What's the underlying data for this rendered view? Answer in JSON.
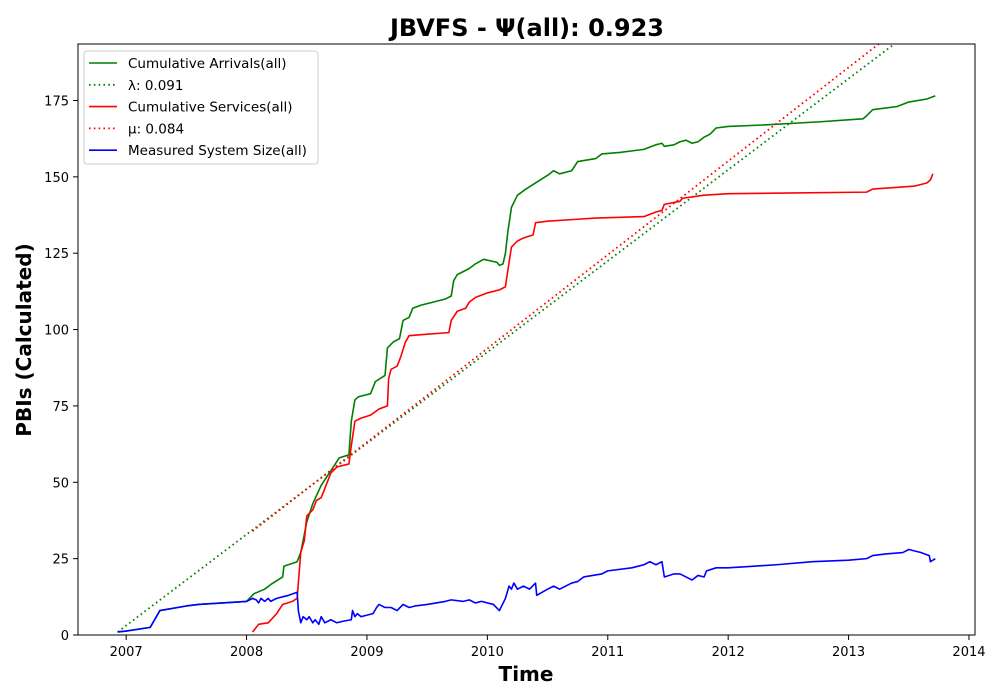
{
  "chart_data": {
    "type": "line",
    "title": "JBVFS -  Ψ(all): 0.923",
    "xlabel": "Time",
    "ylabel": "PBIs (Calculated)",
    "xlim": [
      2006.6,
      2014.05
    ],
    "ylim": [
      0,
      193.5
    ],
    "x_ticks": [
      2007,
      2008,
      2009,
      2010,
      2011,
      2012,
      2013,
      2014
    ],
    "x_tick_labels": [
      "2007",
      "2008",
      "2009",
      "2010",
      "2011",
      "2012",
      "2013",
      "2014"
    ],
    "y_ticks": [
      0,
      25,
      50,
      75,
      100,
      125,
      150,
      175
    ],
    "y_tick_labels": [
      "0",
      "25",
      "50",
      "75",
      "100",
      "125",
      "150",
      "175"
    ],
    "grid": false,
    "legend_position": "upper-left",
    "series": [
      {
        "name": "Cumulative Arrivals(all)",
        "style": "solid",
        "color": "#008000",
        "points": [
          [
            2006.93,
            1
          ],
          [
            2007.0,
            1.3
          ],
          [
            2007.2,
            2.5
          ],
          [
            2007.28,
            8
          ],
          [
            2007.5,
            9.5
          ],
          [
            2007.6,
            10
          ],
          [
            2008.0,
            11
          ],
          [
            2008.06,
            13.5
          ],
          [
            2008.15,
            15
          ],
          [
            2008.2,
            16.5
          ],
          [
            2008.3,
            19
          ],
          [
            2008.31,
            22.5
          ],
          [
            2008.42,
            24
          ],
          [
            2008.45,
            27
          ],
          [
            2008.48,
            33
          ],
          [
            2008.5,
            37
          ],
          [
            2008.55,
            43
          ],
          [
            2008.62,
            49
          ],
          [
            2008.67,
            52
          ],
          [
            2008.72,
            55
          ],
          [
            2008.77,
            58
          ],
          [
            2008.85,
            59
          ],
          [
            2008.87,
            70
          ],
          [
            2008.9,
            77
          ],
          [
            2008.93,
            78
          ],
          [
            2009.03,
            79
          ],
          [
            2009.07,
            83
          ],
          [
            2009.15,
            85
          ],
          [
            2009.17,
            94
          ],
          [
            2009.22,
            96
          ],
          [
            2009.27,
            97
          ],
          [
            2009.3,
            103
          ],
          [
            2009.35,
            104
          ],
          [
            2009.38,
            107
          ],
          [
            2009.45,
            108
          ],
          [
            2009.55,
            109
          ],
          [
            2009.65,
            110
          ],
          [
            2009.7,
            111
          ],
          [
            2009.72,
            116
          ],
          [
            2009.75,
            118
          ],
          [
            2009.85,
            120
          ],
          [
            2009.9,
            121.5
          ],
          [
            2009.97,
            123
          ],
          [
            2010.08,
            122
          ],
          [
            2010.1,
            121
          ],
          [
            2010.13,
            121.5
          ],
          [
            2010.15,
            125
          ],
          [
            2010.17,
            132
          ],
          [
            2010.2,
            140
          ],
          [
            2010.25,
            144
          ],
          [
            2010.32,
            146
          ],
          [
            2010.4,
            148
          ],
          [
            2010.5,
            150.5
          ],
          [
            2010.55,
            152
          ],
          [
            2010.6,
            151
          ],
          [
            2010.7,
            152
          ],
          [
            2010.75,
            155
          ],
          [
            2010.9,
            156
          ],
          [
            2010.95,
            157.5
          ],
          [
            2011.1,
            158
          ],
          [
            2011.3,
            159
          ],
          [
            2011.4,
            160.5
          ],
          [
            2011.45,
            161
          ],
          [
            2011.47,
            160
          ],
          [
            2011.55,
            160.5
          ],
          [
            2011.6,
            161.5
          ],
          [
            2011.65,
            162
          ],
          [
            2011.7,
            161
          ],
          [
            2011.75,
            161.5
          ],
          [
            2011.8,
            163
          ],
          [
            2011.85,
            164
          ],
          [
            2011.9,
            166
          ],
          [
            2012.0,
            166.5
          ],
          [
            2012.3,
            167
          ],
          [
            2012.75,
            168
          ],
          [
            2013.12,
            169
          ],
          [
            2013.15,
            170
          ],
          [
            2013.2,
            172
          ],
          [
            2013.4,
            173
          ],
          [
            2013.5,
            174.5
          ],
          [
            2013.65,
            175.5
          ],
          [
            2013.72,
            176.5
          ]
        ]
      },
      {
        "name": "λ: 0.091",
        "style": "dotted",
        "color": "#008000",
        "points": [
          [
            2006.93,
            1
          ],
          [
            2013.38,
            193.5
          ]
        ]
      },
      {
        "name": "Cumulative Services(all)",
        "style": "solid",
        "color": "#ff0000",
        "points": [
          [
            2008.05,
            1
          ],
          [
            2008.1,
            3.5
          ],
          [
            2008.18,
            4
          ],
          [
            2008.25,
            7
          ],
          [
            2008.3,
            10
          ],
          [
            2008.38,
            11
          ],
          [
            2008.42,
            12
          ],
          [
            2008.43,
            17
          ],
          [
            2008.45,
            27
          ],
          [
            2008.48,
            31
          ],
          [
            2008.5,
            39
          ],
          [
            2008.55,
            41
          ],
          [
            2008.58,
            44
          ],
          [
            2008.62,
            45
          ],
          [
            2008.65,
            48
          ],
          [
            2008.7,
            53
          ],
          [
            2008.75,
            55
          ],
          [
            2008.85,
            56
          ],
          [
            2008.87,
            62
          ],
          [
            2008.9,
            70
          ],
          [
            2008.95,
            71
          ],
          [
            2009.03,
            72
          ],
          [
            2009.1,
            74
          ],
          [
            2009.17,
            75
          ],
          [
            2009.18,
            84
          ],
          [
            2009.2,
            87
          ],
          [
            2009.25,
            88
          ],
          [
            2009.28,
            91
          ],
          [
            2009.32,
            96
          ],
          [
            2009.35,
            98
          ],
          [
            2009.5,
            98.5
          ],
          [
            2009.68,
            99
          ],
          [
            2009.7,
            103
          ],
          [
            2009.75,
            106
          ],
          [
            2009.82,
            107
          ],
          [
            2009.85,
            109
          ],
          [
            2009.9,
            110.5
          ],
          [
            2010.0,
            112
          ],
          [
            2010.1,
            113
          ],
          [
            2010.15,
            114
          ],
          [
            2010.18,
            122
          ],
          [
            2010.2,
            127
          ],
          [
            2010.25,
            129
          ],
          [
            2010.3,
            130
          ],
          [
            2010.38,
            131
          ],
          [
            2010.4,
            135
          ],
          [
            2010.5,
            135.5
          ],
          [
            2010.7,
            136
          ],
          [
            2010.9,
            136.5
          ],
          [
            2011.3,
            137
          ],
          [
            2011.4,
            138.5
          ],
          [
            2011.45,
            139
          ],
          [
            2011.47,
            141
          ],
          [
            2011.6,
            142
          ],
          [
            2011.62,
            143
          ],
          [
            2011.8,
            144
          ],
          [
            2012.0,
            144.5
          ],
          [
            2013.15,
            145
          ],
          [
            2013.2,
            146
          ],
          [
            2013.55,
            147
          ],
          [
            2013.65,
            148
          ],
          [
            2013.68,
            149
          ],
          [
            2013.7,
            151
          ]
        ]
      },
      {
        "name": "μ: 0.084",
        "style": "dotted",
        "color": "#ff0000",
        "points": [
          [
            2008.05,
            34
          ],
          [
            2013.25,
            193.5
          ]
        ]
      },
      {
        "name": "Measured System Size(all)",
        "style": "solid",
        "color": "#0000ff",
        "points": [
          [
            2006.93,
            1
          ],
          [
            2007.0,
            1.3
          ],
          [
            2007.2,
            2.5
          ],
          [
            2007.28,
            8
          ],
          [
            2007.5,
            9.5
          ],
          [
            2007.6,
            10
          ],
          [
            2008.0,
            11
          ],
          [
            2008.05,
            12
          ],
          [
            2008.08,
            11.5
          ],
          [
            2008.1,
            10.5
          ],
          [
            2008.12,
            12
          ],
          [
            2008.15,
            11
          ],
          [
            2008.18,
            12
          ],
          [
            2008.2,
            11
          ],
          [
            2008.25,
            12
          ],
          [
            2008.3,
            12.5
          ],
          [
            2008.35,
            13
          ],
          [
            2008.42,
            14
          ],
          [
            2008.43,
            8
          ],
          [
            2008.45,
            4
          ],
          [
            2008.47,
            6
          ],
          [
            2008.5,
            5
          ],
          [
            2008.52,
            6
          ],
          [
            2008.55,
            4
          ],
          [
            2008.57,
            5
          ],
          [
            2008.6,
            3.5
          ],
          [
            2008.62,
            6
          ],
          [
            2008.65,
            4
          ],
          [
            2008.7,
            5
          ],
          [
            2008.75,
            4
          ],
          [
            2008.8,
            4.5
          ],
          [
            2008.87,
            5
          ],
          [
            2008.88,
            8
          ],
          [
            2008.9,
            6
          ],
          [
            2008.92,
            7
          ],
          [
            2008.95,
            6
          ],
          [
            2009.0,
            6.5
          ],
          [
            2009.05,
            7
          ],
          [
            2009.08,
            9
          ],
          [
            2009.1,
            10
          ],
          [
            2009.15,
            9
          ],
          [
            2009.2,
            9
          ],
          [
            2009.25,
            8
          ],
          [
            2009.3,
            10
          ],
          [
            2009.35,
            9
          ],
          [
            2009.4,
            9.5
          ],
          [
            2009.5,
            10
          ],
          [
            2009.65,
            11
          ],
          [
            2009.7,
            11.5
          ],
          [
            2009.8,
            11
          ],
          [
            2009.85,
            11.5
          ],
          [
            2009.9,
            10.5
          ],
          [
            2009.95,
            11
          ],
          [
            2010.05,
            10
          ],
          [
            2010.1,
            8
          ],
          [
            2010.15,
            12
          ],
          [
            2010.18,
            16
          ],
          [
            2010.2,
            15
          ],
          [
            2010.22,
            17
          ],
          [
            2010.25,
            15
          ],
          [
            2010.3,
            16
          ],
          [
            2010.35,
            15
          ],
          [
            2010.4,
            17
          ],
          [
            2010.41,
            13
          ],
          [
            2010.5,
            15
          ],
          [
            2010.55,
            16
          ],
          [
            2010.6,
            15
          ],
          [
            2010.7,
            17
          ],
          [
            2010.75,
            17.5
          ],
          [
            2010.8,
            19
          ],
          [
            2010.95,
            20
          ],
          [
            2011.0,
            21
          ],
          [
            2011.2,
            22
          ],
          [
            2011.3,
            23
          ],
          [
            2011.35,
            24
          ],
          [
            2011.4,
            23
          ],
          [
            2011.45,
            24
          ],
          [
            2011.47,
            19
          ],
          [
            2011.55,
            20
          ],
          [
            2011.6,
            20
          ],
          [
            2011.65,
            19
          ],
          [
            2011.7,
            18
          ],
          [
            2011.75,
            19.5
          ],
          [
            2011.8,
            19
          ],
          [
            2011.82,
            21
          ],
          [
            2011.9,
            22
          ],
          [
            2012.0,
            22
          ],
          [
            2012.2,
            22.5
          ],
          [
            2012.4,
            23
          ],
          [
            2012.7,
            24
          ],
          [
            2013.0,
            24.5
          ],
          [
            2013.15,
            25
          ],
          [
            2013.2,
            26
          ],
          [
            2013.3,
            26.5
          ],
          [
            2013.45,
            27
          ],
          [
            2013.5,
            28
          ],
          [
            2013.6,
            27
          ],
          [
            2013.67,
            26
          ],
          [
            2013.68,
            24
          ],
          [
            2013.72,
            25
          ]
        ]
      }
    ]
  }
}
